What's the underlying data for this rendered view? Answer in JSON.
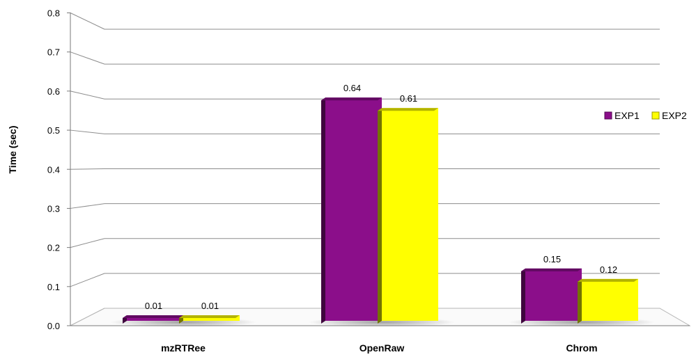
{
  "chart_data": {
    "type": "bar",
    "title": "",
    "xlabel": "",
    "ylabel": "Time  (sec)",
    "categories": [
      "mzRTRee",
      "OpenRaw",
      "Chrom"
    ],
    "series": [
      {
        "name": "EXP1",
        "values": [
          0.01,
          0.64,
          0.15
        ],
        "labels": [
          "0.01",
          "0.64",
          "0.15"
        ],
        "color": "#8B0E8A"
      },
      {
        "name": "EXP2",
        "values": [
          0.01,
          0.61,
          0.12
        ],
        "labels": [
          "0.01",
          "0.61",
          "0.12"
        ],
        "color": "#FFFF00"
      }
    ],
    "ylim": [
      0,
      0.8
    ],
    "yticks": [
      "0.0",
      "0.1",
      "0.2",
      "0.3",
      "0.4",
      "0.5",
      "0.6",
      "0.7",
      "0.8"
    ],
    "grid": true,
    "legend_position": "right",
    "style": "3d-perspective"
  }
}
